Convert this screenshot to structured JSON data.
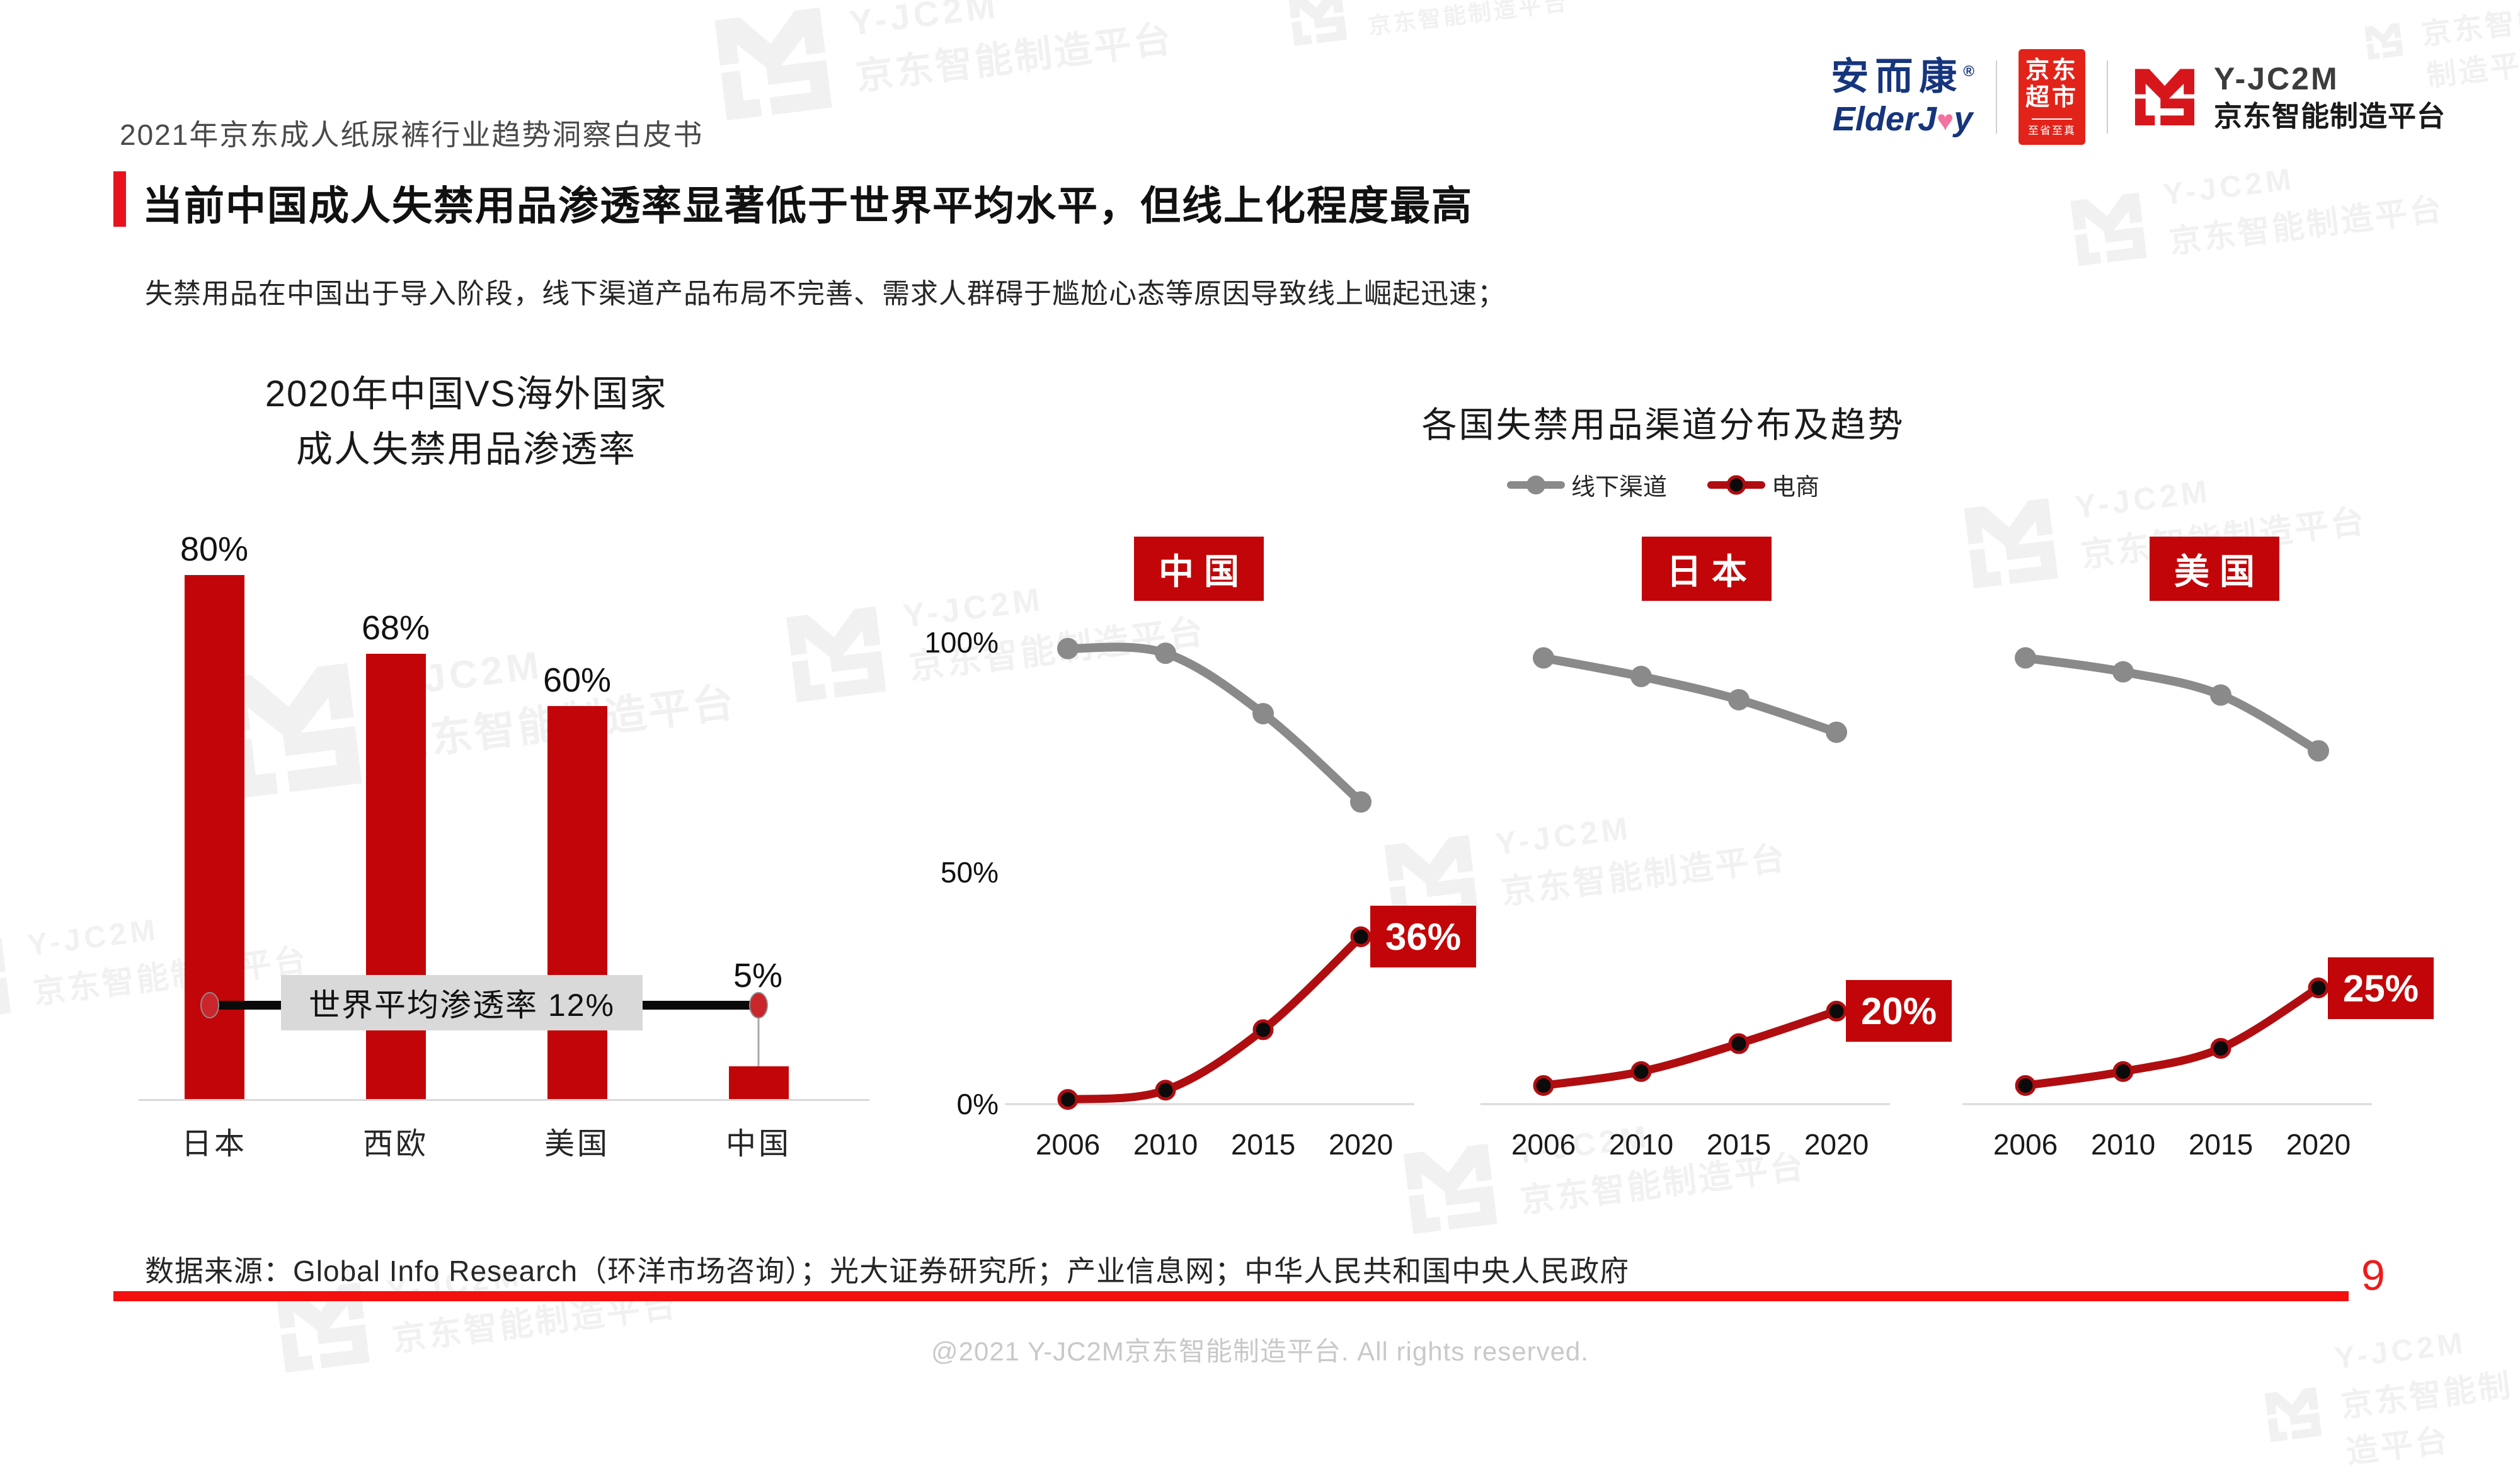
{
  "header": {
    "text": "2021年京东成人纸尿裤行业趋势洞察白皮书"
  },
  "logos": {
    "elderjoy": {
      "cn": "安而康",
      "reg": "®",
      "en_left": "ElderJ",
      "en_right": "y",
      "heart_icon": "♥"
    },
    "jd_supermarket": {
      "line1": "京东",
      "line2": "超市",
      "tagline": "至省至真"
    },
    "yjc2m": {
      "name": "Y-JC2M",
      "cn": "京东智能制造平台"
    }
  },
  "title": {
    "text": "当前中国成人失禁用品渗透率显著低于世界平均水平，但线上化程度最高"
  },
  "subtitle": {
    "text": "失禁用品在中国出于导入阶段，线下渠道产品布局不完善、需求人群碍于尴尬心态等原因导致线上崛起迅速；"
  },
  "chart_data": [
    {
      "type": "bar",
      "title": "2020年中国VS海外国家成人失禁用品渗透率",
      "title_lines": [
        "2020年中国VS海外国家",
        "成人失禁用品渗透率"
      ],
      "categories": [
        "日本",
        "西欧",
        "美国",
        "中国"
      ],
      "values": [
        80,
        68,
        60,
        5
      ],
      "value_labels": [
        "80%",
        "68%",
        "60%",
        "5%"
      ],
      "ylim": [
        0,
        100
      ],
      "grid": false,
      "bar_color": "#c20508",
      "annotation": {
        "label": "世界平均渗透率 12%",
        "value": 12
      }
    },
    {
      "type": "line",
      "title": "各国失禁用品渠道分布及趋势",
      "legend": [
        {
          "label": "线下渠道",
          "color": "#8a8a8a"
        },
        {
          "label": "电商",
          "color": "#b00d10"
        }
      ],
      "legend_position": "top-center",
      "x": [
        "2006",
        "2010",
        "2015",
        "2020"
      ],
      "y_ticks": [
        "100%",
        "50%",
        "0%"
      ],
      "ylim": [
        0,
        100
      ],
      "grid": false,
      "panels": [
        {
          "label": "中国",
          "series": [
            {
              "name": "线下渠道",
              "values": [
                98,
                97,
                84,
                65
              ]
            },
            {
              "name": "电商",
              "values": [
                1,
                3,
                16,
                36
              ]
            }
          ],
          "ecom_end_label": "36%"
        },
        {
          "label": "日本",
          "series": [
            {
              "name": "线下渠道",
              "values": [
                96,
                92,
                87,
                80
              ]
            },
            {
              "name": "电商",
              "values": [
                4,
                7,
                13,
                20
              ]
            }
          ],
          "ecom_end_label": "20%"
        },
        {
          "label": "美国",
          "series": [
            {
              "name": "线下渠道",
              "values": [
                96,
                93,
                88,
                76
              ]
            },
            {
              "name": "电商",
              "values": [
                4,
                7,
                12,
                25
              ]
            }
          ],
          "ecom_end_label": "25%"
        }
      ]
    }
  ],
  "source": {
    "text": "数据来源：Global Info Research（环洋市场咨询）；光大证券研究所；产业信息网；中华人民共和国中央人民政府"
  },
  "footer": {
    "text": "@2021 Y-JC2M京东智能制造平台. All rights reserved.",
    "page_number": "9"
  },
  "watermark": {
    "brand": "Y-JC2M",
    "brand_cn": "京东智能制造平台"
  },
  "colors": {
    "accent_red": "#e8121d",
    "brand_red": "#c20508",
    "bright_red": "#f3100e",
    "offline_gray": "#8a8a8a",
    "ecom_red": "#b00d10",
    "jd_red": "#e2231a",
    "elderjoy_blue": "#16357d",
    "annotation_box": "#d9d9d9",
    "watermark_gray": "#f1f1f1"
  }
}
